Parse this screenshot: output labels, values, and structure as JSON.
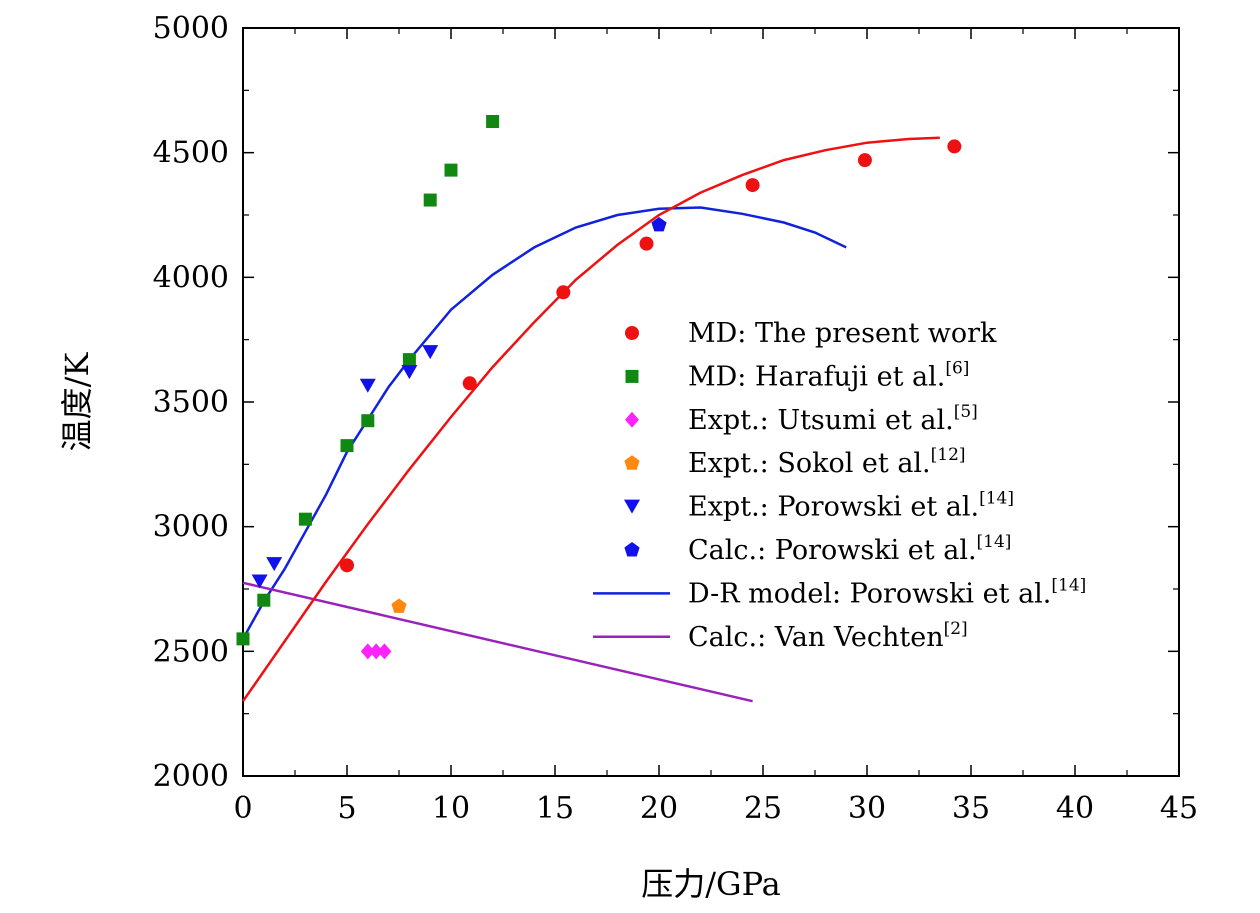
{
  "chart_data": {
    "type": "scatter",
    "xlabel": "压力/GPa",
    "ylabel": "温度/K",
    "xlim": [
      0,
      45
    ],
    "ylim": [
      2000,
      5000
    ],
    "xticks": [
      0,
      5,
      10,
      15,
      20,
      25,
      30,
      35,
      40,
      45
    ],
    "yticks": [
      2000,
      2500,
      3000,
      3500,
      4000,
      4500,
      5000
    ],
    "grid": false,
    "legend_position": "right",
    "series": [
      {
        "name": "MD: The present work",
        "kind": "scatter",
        "marker": "circle",
        "color": "#ee1111",
        "points": [
          [
            5.0,
            2845
          ],
          [
            10.9,
            3575
          ],
          [
            15.4,
            3940
          ],
          [
            19.4,
            4135
          ],
          [
            24.5,
            4370
          ],
          [
            29.9,
            4470
          ],
          [
            34.2,
            4525
          ]
        ]
      },
      {
        "name": "MD: Harafuji et al.",
        "ref": "[6]",
        "kind": "scatter",
        "marker": "square",
        "color": "#118811",
        "points": [
          [
            0.0,
            2550
          ],
          [
            1.0,
            2705
          ],
          [
            3.0,
            3030
          ],
          [
            5.0,
            3325
          ],
          [
            6.0,
            3425
          ],
          [
            8.0,
            3670
          ],
          [
            9.0,
            4310
          ],
          [
            10.0,
            4430
          ],
          [
            12.0,
            4625
          ]
        ]
      },
      {
        "name": "Expt.: Utsumi et al.",
        "ref": "[5]",
        "kind": "scatter",
        "marker": "diamond",
        "color": "#ff22ff",
        "points": [
          [
            6.0,
            2500
          ],
          [
            6.4,
            2500
          ],
          [
            6.8,
            2500
          ]
        ]
      },
      {
        "name": "Expt.: Sokol et al.",
        "ref": "[12]",
        "kind": "scatter",
        "marker": "pentagon",
        "color": "#ff8811",
        "points": [
          [
            7.5,
            2680
          ]
        ]
      },
      {
        "name": "Expt.: Porowski et al.",
        "ref": "[14]",
        "kind": "scatter",
        "marker": "triangle-down",
        "color": "#1111ee",
        "points": [
          [
            0.8,
            2780
          ],
          [
            1.5,
            2850
          ],
          [
            6.0,
            3565
          ],
          [
            8.0,
            3620
          ],
          [
            9.0,
            3700
          ]
        ]
      },
      {
        "name": "Calc.: Porowski et al.",
        "ref": "[14]",
        "kind": "scatter",
        "marker": "pentagon",
        "color": "#1111ee",
        "points": [
          [
            20.0,
            4210
          ]
        ]
      },
      {
        "name": "D-R model: Porowski et al.",
        "ref": "[14]",
        "kind": "line",
        "color": "#1122dd",
        "points": [
          [
            0.0,
            2550
          ],
          [
            1.0,
            2700
          ],
          [
            2.0,
            2830
          ],
          [
            3.0,
            2980
          ],
          [
            4.0,
            3130
          ],
          [
            5.0,
            3300
          ],
          [
            6.0,
            3430
          ],
          [
            7.0,
            3560
          ],
          [
            8.0,
            3670
          ],
          [
            9.0,
            3770
          ],
          [
            10.0,
            3870
          ],
          [
            12.0,
            4010
          ],
          [
            14.0,
            4120
          ],
          [
            16.0,
            4200
          ],
          [
            18.0,
            4250
          ],
          [
            20.0,
            4275
          ],
          [
            22.0,
            4280
          ],
          [
            24.0,
            4255
          ],
          [
            26.0,
            4220
          ],
          [
            27.5,
            4180
          ],
          [
            29.0,
            4120
          ]
        ]
      },
      {
        "name": "Calc.: Van Vechten",
        "ref": "[2]",
        "kind": "line",
        "color": "#9922bb",
        "points": [
          [
            0.0,
            2775
          ],
          [
            24.5,
            2300
          ]
        ]
      },
      {
        "name": "",
        "kind": "line",
        "color": "#ee1111",
        "points": [
          [
            0.0,
            2300
          ],
          [
            2.0,
            2540
          ],
          [
            4.0,
            2780
          ],
          [
            6.0,
            3010
          ],
          [
            8.0,
            3230
          ],
          [
            10.0,
            3440
          ],
          [
            12.0,
            3640
          ],
          [
            14.0,
            3820
          ],
          [
            16.0,
            3990
          ],
          [
            18.0,
            4130
          ],
          [
            20.0,
            4250
          ],
          [
            22.0,
            4340
          ],
          [
            24.0,
            4410
          ],
          [
            26.0,
            4470
          ],
          [
            28.0,
            4510
          ],
          [
            30.0,
            4540
          ],
          [
            32.0,
            4555
          ],
          [
            33.5,
            4560
          ]
        ]
      }
    ]
  }
}
